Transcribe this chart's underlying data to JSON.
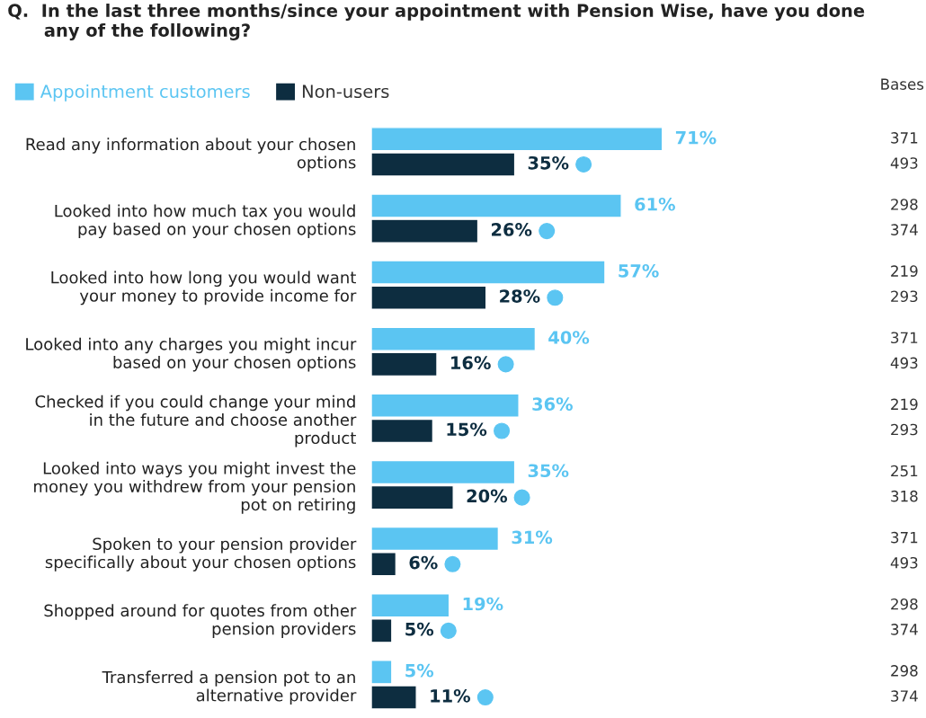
{
  "chart_data": {
    "type": "bar",
    "orientation": "horizontal",
    "title": "Q.  In the last three months/since your appointment with Pension Wise, have you done\n      any of the following?",
    "categories": [
      "Read any information about your chosen\noptions",
      "Looked into how much tax you would\npay based on your chosen options",
      "Looked into how long you would want\nyour money to provide income for",
      "Looked into any charges you might incur\nbased on your chosen options",
      "Checked if you could change your mind\nin the future and choose another\nproduct",
      "Looked into ways you might invest the\nmoney you withdrew from your pension\npot on retiring",
      "Spoken to your pension provider\nspecifically about your chosen options",
      "Shopped around for quotes from other\npension providers",
      "Transferred a pension pot to an\nalternative provider"
    ],
    "series": [
      {
        "name": "Appointment customers",
        "color": "#5bc5f2",
        "values": [
          71,
          61,
          57,
          40,
          36,
          35,
          31,
          19,
          5
        ],
        "value_labels": [
          "71%",
          "61%",
          "57%",
          "40%",
          "36%",
          "35%",
          "31%",
          "19%",
          "5%"
        ]
      },
      {
        "name": "Non-users",
        "color": "#0d2d40",
        "values": [
          35,
          26,
          28,
          16,
          15,
          20,
          6,
          5,
          11
        ],
        "value_labels": [
          "35%",
          "26%",
          "28%",
          "16%",
          "15%",
          "20%",
          "6%",
          "5%",
          "11%"
        ]
      }
    ],
    "legend": "top left",
    "annotations": [
      "Bases",
      "371",
      "493",
      "298",
      "374",
      "219",
      "293",
      "371",
      "493",
      "219",
      "293",
      "251",
      "318",
      "371",
      "493",
      "298",
      "374",
      "298",
      "374"
    ]
  }
}
